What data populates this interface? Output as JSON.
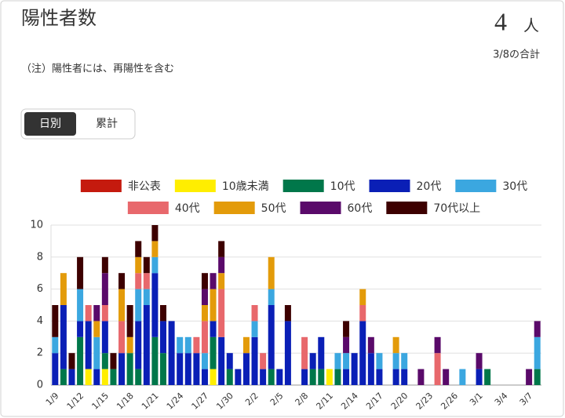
{
  "header": {
    "title": "陽性者数",
    "value": 4,
    "unit": "人",
    "caption": "3/8の合計",
    "note": "（注）陽性者には、再陽性を含む"
  },
  "tabs": [
    "日別",
    "累計"
  ],
  "chart_data": {
    "type": "stacked-bar",
    "categories": [
      "1/9",
      null,
      null,
      "1/12",
      null,
      null,
      "1/15",
      null,
      null,
      "1/18",
      null,
      null,
      "1/21",
      null,
      null,
      "1/24",
      null,
      null,
      "1/27",
      null,
      null,
      "1/30",
      null,
      null,
      "2/2",
      null,
      null,
      "2/5",
      null,
      null,
      "2/8",
      null,
      null,
      "2/11",
      null,
      null,
      "2/14",
      null,
      null,
      "2/17",
      null,
      null,
      "2/20",
      null,
      null,
      "2/23",
      null,
      null,
      "2/26",
      null,
      null,
      "3/1",
      null,
      null,
      "3/4",
      null,
      null,
      "3/7",
      null
    ],
    "series": [
      {
        "name": "非公表",
        "color": "#c51a0e",
        "values": [
          0,
          0,
          0,
          0,
          0,
          0,
          0,
          0,
          0,
          0,
          0,
          0,
          0,
          0,
          0,
          0,
          0,
          0,
          0,
          0,
          0,
          0,
          0,
          0,
          0,
          0,
          0,
          0,
          0,
          0,
          0,
          0,
          0,
          0,
          0,
          0,
          0,
          0,
          0,
          0,
          0,
          0,
          0,
          0,
          0,
          0,
          0,
          0,
          0,
          0,
          0,
          0,
          0,
          0,
          0,
          0,
          0,
          0,
          0
        ]
      },
      {
        "name": "10歳未満",
        "color": "#ffee00",
        "values": [
          0,
          0,
          0,
          0,
          1,
          0,
          1,
          0,
          0,
          0,
          0,
          0,
          0,
          0,
          0,
          0,
          0,
          0,
          0,
          1,
          0,
          0,
          0,
          0,
          0,
          0,
          0,
          0,
          0,
          0,
          0,
          0,
          0,
          1,
          0,
          0,
          0,
          0,
          0,
          0,
          0,
          0,
          0,
          0,
          0,
          0,
          0,
          0,
          0,
          0,
          0,
          0,
          0,
          0,
          0,
          0,
          0,
          0,
          0
        ]
      },
      {
        "name": "10代",
        "color": "#00774a",
        "values": [
          0,
          1,
          0,
          3,
          0,
          0,
          1,
          1,
          0,
          2,
          1,
          0,
          3,
          2,
          0,
          0,
          0,
          0,
          0,
          2,
          0,
          1,
          0,
          0,
          0,
          0,
          1,
          0,
          0,
          0,
          0,
          1,
          1,
          0,
          1,
          0,
          0,
          0,
          0,
          0,
          0,
          0,
          0,
          0,
          0,
          0,
          0,
          0,
          0,
          0,
          0,
          0,
          1,
          0,
          0,
          0,
          0,
          0,
          1
        ]
      },
      {
        "name": "20代",
        "color": "#0a1fb6",
        "values": [
          2,
          4,
          1,
          1,
          3,
          1,
          2,
          0,
          2,
          0,
          3,
          5,
          4,
          2,
          4,
          2,
          2,
          2,
          1,
          1,
          3,
          1,
          1,
          2,
          3,
          1,
          4,
          1,
          4,
          0,
          1,
          1,
          2,
          0,
          0,
          1,
          2,
          4,
          2,
          1,
          0,
          1,
          1,
          0,
          0,
          0,
          0,
          0,
          0,
          0,
          0,
          1,
          0,
          0,
          0,
          0,
          0,
          0,
          0
        ]
      },
      {
        "name": "30代",
        "color": "#3ba7e0",
        "values": [
          1,
          0,
          0,
          2,
          0,
          2,
          0,
          0,
          0,
          0,
          2,
          1,
          1,
          0,
          0,
          1,
          1,
          0,
          1,
          0,
          0,
          0,
          0,
          0,
          1,
          0,
          1,
          0,
          0,
          0,
          0,
          0,
          0,
          0,
          1,
          1,
          0,
          0,
          0,
          1,
          0,
          1,
          1,
          0,
          0,
          0,
          0,
          0,
          0,
          1,
          0,
          0,
          0,
          0,
          0,
          0,
          0,
          0,
          2
        ]
      },
      {
        "name": "40代",
        "color": "#e8686c",
        "values": [
          0,
          0,
          0,
          0,
          1,
          0,
          1,
          0,
          2,
          0,
          1,
          1,
          0,
          0,
          0,
          0,
          0,
          1,
          2,
          0,
          3,
          0,
          0,
          0,
          1,
          1,
          0,
          0,
          0,
          0,
          2,
          0,
          0,
          0,
          0,
          0,
          0,
          1,
          0,
          0,
          0,
          0,
          0,
          0,
          0,
          0,
          2,
          0,
          0,
          0,
          0,
          0,
          0,
          0,
          0,
          0,
          0,
          0,
          0
        ]
      },
      {
        "name": "50代",
        "color": "#e39b0a",
        "values": [
          0,
          2,
          0,
          0,
          0,
          1,
          0,
          0,
          2,
          1,
          1,
          0,
          1,
          0,
          0,
          0,
          0,
          0,
          1,
          2,
          1,
          0,
          0,
          1,
          0,
          0,
          2,
          0,
          0,
          0,
          0,
          0,
          0,
          0,
          0,
          0,
          0,
          1,
          0,
          0,
          0,
          1,
          0,
          0,
          0,
          0,
          0,
          0,
          0,
          0,
          0,
          0,
          0,
          0,
          0,
          0,
          0,
          0,
          0
        ]
      },
      {
        "name": "60代",
        "color": "#5a0a6a",
        "values": [
          0,
          0,
          0,
          0,
          0,
          1,
          2,
          0,
          0,
          0,
          0,
          0,
          0,
          0,
          0,
          0,
          0,
          0,
          1,
          1,
          1,
          0,
          0,
          0,
          0,
          0,
          0,
          0,
          0,
          0,
          0,
          0,
          0,
          0,
          0,
          1,
          0,
          0,
          1,
          0,
          0,
          0,
          0,
          0,
          1,
          0,
          1,
          1,
          0,
          0,
          0,
          1,
          0,
          0,
          0,
          0,
          0,
          1,
          1
        ]
      },
      {
        "name": "70代以上",
        "color": "#3d0000",
        "values": [
          2,
          0,
          1,
          2,
          0,
          0,
          1,
          1,
          1,
          2,
          1,
          1,
          1,
          1,
          0,
          0,
          0,
          0,
          1,
          0,
          1,
          0,
          0,
          0,
          0,
          0,
          0,
          0,
          1,
          0,
          0,
          0,
          0,
          0,
          0,
          1,
          0,
          0,
          0,
          0,
          0,
          0,
          0,
          0,
          0,
          0,
          0,
          0,
          0,
          0,
          0,
          0,
          0,
          0,
          0,
          0,
          0,
          0,
          0
        ]
      }
    ],
    "ylim": [
      0,
      10
    ],
    "yticks": [
      0,
      2,
      4,
      6,
      8,
      10
    ],
    "grid": true
  }
}
